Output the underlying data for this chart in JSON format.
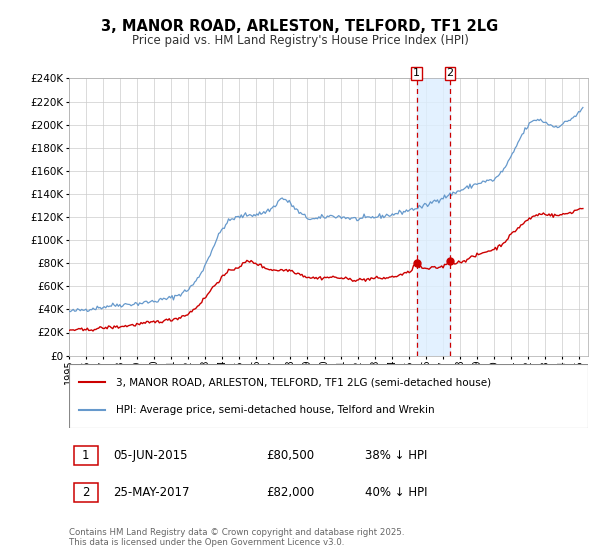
{
  "title": "3, MANOR ROAD, ARLESTON, TELFORD, TF1 2LG",
  "subtitle": "Price paid vs. HM Land Registry's House Price Index (HPI)",
  "legend_label_red": "3, MANOR ROAD, ARLESTON, TELFORD, TF1 2LG (semi-detached house)",
  "legend_label_blue": "HPI: Average price, semi-detached house, Telford and Wrekin",
  "annotation1_date": "05-JUN-2015",
  "annotation1_price": "£80,500",
  "annotation1_hpi": "38% ↓ HPI",
  "annotation2_date": "25-MAY-2017",
  "annotation2_price": "£82,000",
  "annotation2_hpi": "40% ↓ HPI",
  "footer": "Contains HM Land Registry data © Crown copyright and database right 2025.\nThis data is licensed under the Open Government Licence v3.0.",
  "sale1_date_num": 2015.43,
  "sale2_date_num": 2017.4,
  "sale1_price": 80500,
  "sale2_price": 82000,
  "red_color": "#cc0000",
  "blue_color": "#6699cc",
  "shade_color": "#ddeeff",
  "grid_color": "#cccccc",
  "background_color": "#ffffff",
  "ylim": [
    0,
    240000
  ],
  "yticks": [
    0,
    20000,
    40000,
    60000,
    80000,
    100000,
    120000,
    140000,
    160000,
    180000,
    200000,
    220000,
    240000
  ],
  "xlim_start": 1995,
  "xlim_end": 2025.5
}
